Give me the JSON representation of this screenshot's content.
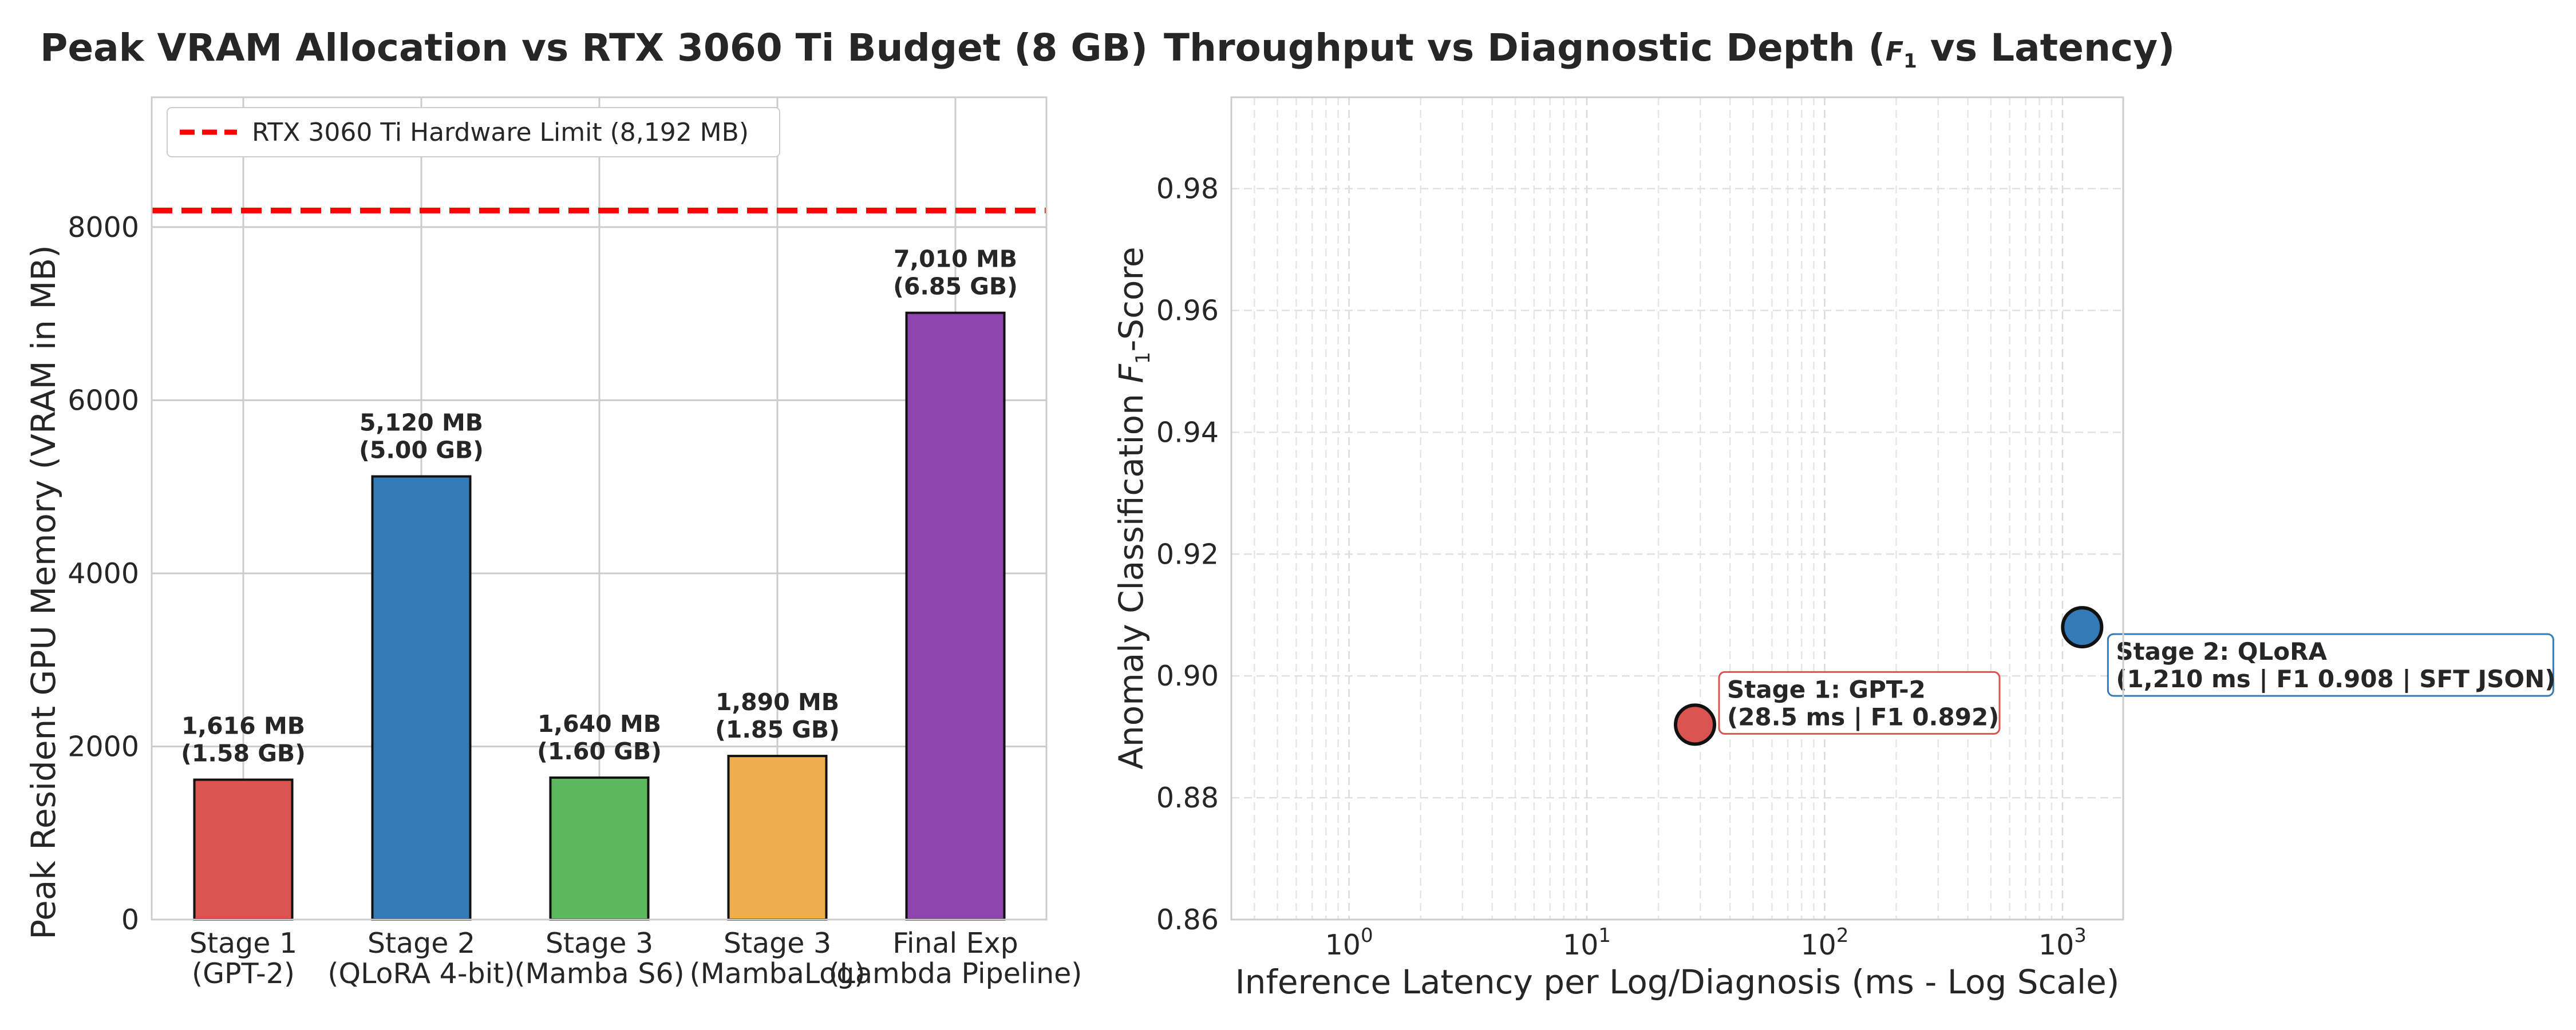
{
  "chart_data": [
    {
      "type": "bar",
      "title": "Peak VRAM Allocation vs RTX 3060 Ti Budget (8 GB)",
      "xlabel": "",
      "ylabel": "Peak Resident GPU Memory (VRAM in MB)",
      "ylim": [
        0,
        9500
      ],
      "yticks": [
        0,
        2000,
        4000,
        6000,
        8000
      ],
      "grid": true,
      "categories": [
        [
          "Stage 1",
          "(GPT-2)"
        ],
        [
          "Stage 2",
          "(QLoRA 4-bit)"
        ],
        [
          "Stage 3",
          "(Mamba S6)"
        ],
        [
          "Stage 3",
          "(MambaLog)"
        ],
        [
          "Final Exp",
          "(Lambda Pipeline)"
        ]
      ],
      "values": [
        1616,
        5120,
        1640,
        1890,
        7010
      ],
      "colors": [
        "#d9534f",
        "#337ab7",
        "#5cb85c",
        "#f0ad4e",
        "#8e44ad"
      ],
      "bar_labels": [
        [
          "1,616 MB",
          "(1.58 GB)"
        ],
        [
          "5,120 MB",
          "(5.00 GB)"
        ],
        [
          "1,640 MB",
          "(1.60 GB)"
        ],
        [
          "1,890 MB",
          "(1.85 GB)"
        ],
        [
          "7,010 MB",
          "(6.85 GB)"
        ]
      ],
      "reference_line": {
        "value": 8192,
        "label": "RTX 3060 Ti Hardware Limit (8,192 MB)",
        "color": "#ff0000",
        "style": "dashed"
      },
      "legend_position": "top-left"
    },
    {
      "type": "scatter",
      "title_prefix": "Throughput vs Diagnostic Depth (",
      "title_var": "F",
      "title_sub": "1",
      "title_suffix": " vs Latency)",
      "xlabel": "Inference Latency per Log/Diagnosis (ms - Log Scale)",
      "ylabel_prefix": "Anomaly Classification ",
      "ylabel_var": "F",
      "ylabel_sub": "1",
      "ylabel_suffix": "-Score",
      "xscale": "log",
      "xlim": [
        0.32,
        1800
      ],
      "xticks": [
        {
          "value": 1,
          "base": "10",
          "exp": "0"
        },
        {
          "value": 10,
          "base": "10",
          "exp": "1"
        },
        {
          "value": 100,
          "base": "10",
          "exp": "2"
        },
        {
          "value": 1000,
          "base": "10",
          "exp": "3"
        }
      ],
      "ylim": [
        0.86,
        0.995
      ],
      "yticks": [
        "0.86",
        "0.88",
        "0.90",
        "0.92",
        "0.94",
        "0.96",
        "0.98"
      ],
      "grid": true,
      "points": [
        {
          "x": 28.5,
          "y": 0.892,
          "color": "#d9534f",
          "label": [
            "Stage 1: GPT-2",
            "(28.5 ms | F1 0.892)"
          ]
        },
        {
          "x": 1210,
          "y": 0.908,
          "color": "#337ab7",
          "label": [
            "Stage 2: QLoRA",
            "(1,210 ms | F1 0.908 | SFT JSON)"
          ]
        }
      ]
    }
  ]
}
